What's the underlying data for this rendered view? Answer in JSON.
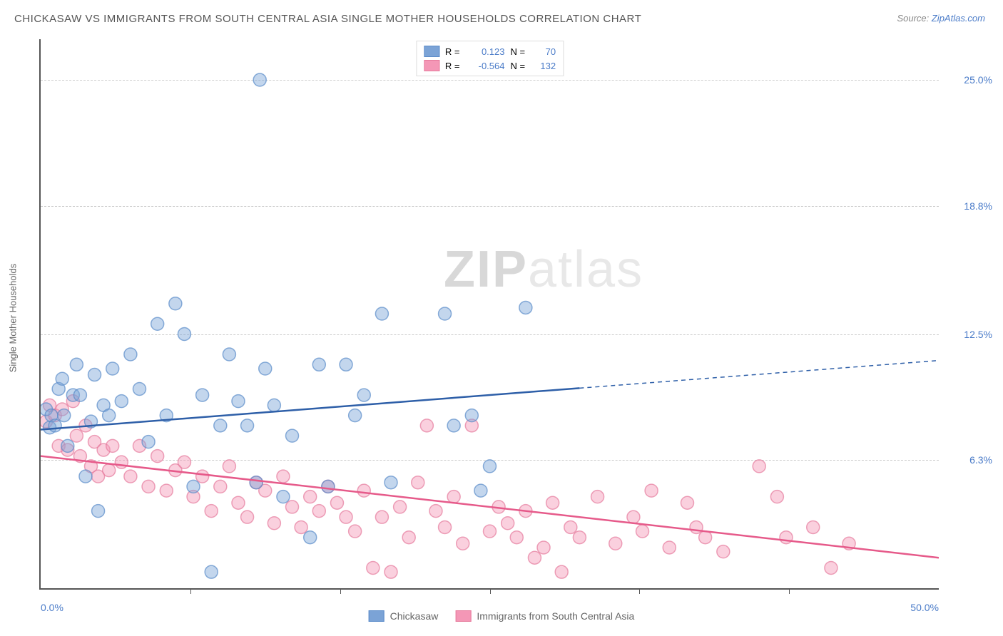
{
  "title": "CHICKASAW VS IMMIGRANTS FROM SOUTH CENTRAL ASIA SINGLE MOTHER HOUSEHOLDS CORRELATION CHART",
  "source_label": "Source: ",
  "source_name": "ZipAtlas.com",
  "y_axis_label": "Single Mother Households",
  "watermark_zip": "ZIP",
  "watermark_atlas": "atlas",
  "chart": {
    "type": "scatter",
    "xlim": [
      0,
      50
    ],
    "ylim": [
      0,
      27
    ],
    "x_ticks": [
      0,
      50
    ],
    "x_tick_labels": [
      "0.0%",
      "50.0%"
    ],
    "x_minor_ticks": [
      8.33,
      16.67,
      25,
      33.33,
      41.67
    ],
    "y_gridlines": [
      6.3,
      12.5,
      18.8,
      25.0
    ],
    "y_tick_labels": [
      "6.3%",
      "12.5%",
      "18.8%",
      "25.0%"
    ],
    "background_color": "#ffffff",
    "grid_color": "#cccccc",
    "axis_color": "#555555",
    "marker_radius": 9,
    "marker_opacity": 0.45,
    "marker_stroke_width": 1.5,
    "series": [
      {
        "name": "Chickasaw",
        "color": "#7ba3d6",
        "stroke": "#5a8bc9",
        "line_color": "#2e5fa8",
        "R": "0.123",
        "N": "70",
        "trend": {
          "y_at_x0": 7.8,
          "y_at_x50": 11.2,
          "solid_until_x": 30
        },
        "points": [
          [
            0.3,
            8.8
          ],
          [
            0.5,
            7.9
          ],
          [
            0.6,
            8.5
          ],
          [
            0.8,
            8.0
          ],
          [
            1.0,
            9.8
          ],
          [
            1.2,
            10.3
          ],
          [
            1.3,
            8.5
          ],
          [
            1.5,
            7.0
          ],
          [
            1.8,
            9.5
          ],
          [
            2.0,
            11.0
          ],
          [
            2.2,
            9.5
          ],
          [
            2.5,
            5.5
          ],
          [
            2.8,
            8.2
          ],
          [
            3.0,
            10.5
          ],
          [
            3.2,
            3.8
          ],
          [
            3.5,
            9.0
          ],
          [
            3.8,
            8.5
          ],
          [
            4.0,
            10.8
          ],
          [
            4.5,
            9.2
          ],
          [
            5.0,
            11.5
          ],
          [
            5.5,
            9.8
          ],
          [
            6.0,
            7.2
          ],
          [
            6.5,
            13.0
          ],
          [
            7.0,
            8.5
          ],
          [
            7.5,
            14.0
          ],
          [
            8.0,
            12.5
          ],
          [
            8.5,
            5.0
          ],
          [
            9.0,
            9.5
          ],
          [
            9.5,
            0.8
          ],
          [
            10.0,
            8.0
          ],
          [
            10.5,
            11.5
          ],
          [
            11.0,
            9.2
          ],
          [
            11.5,
            8.0
          ],
          [
            12.0,
            5.2
          ],
          [
            12.2,
            25.0
          ],
          [
            12.5,
            10.8
          ],
          [
            13.0,
            9.0
          ],
          [
            13.5,
            4.5
          ],
          [
            15.0,
            2.5
          ],
          [
            14.0,
            7.5
          ],
          [
            15.5,
            11.0
          ],
          [
            16.0,
            5.0
          ],
          [
            17.0,
            11.0
          ],
          [
            17.5,
            8.5
          ],
          [
            18.0,
            9.5
          ],
          [
            19.0,
            13.5
          ],
          [
            19.5,
            5.2
          ],
          [
            22.5,
            13.5
          ],
          [
            23.0,
            8.0
          ],
          [
            24.0,
            8.5
          ],
          [
            24.5,
            4.8
          ],
          [
            25.0,
            6.0
          ],
          [
            27.0,
            13.8
          ]
        ]
      },
      {
        "name": "Immigrants from South Central Asia",
        "color": "#f497b6",
        "stroke": "#e67a9c",
        "line_color": "#e65a8a",
        "R": "-0.564",
        "N": "132",
        "trend": {
          "y_at_x0": 6.5,
          "y_at_x50": 1.5,
          "solid_until_x": 50
        },
        "points": [
          [
            0.3,
            8.2
          ],
          [
            0.5,
            9.0
          ],
          [
            0.8,
            8.5
          ],
          [
            1.0,
            7.0
          ],
          [
            1.2,
            8.8
          ],
          [
            1.5,
            6.8
          ],
          [
            1.8,
            9.2
          ],
          [
            2.0,
            7.5
          ],
          [
            2.2,
            6.5
          ],
          [
            2.5,
            8.0
          ],
          [
            2.8,
            6.0
          ],
          [
            3.0,
            7.2
          ],
          [
            3.2,
            5.5
          ],
          [
            3.5,
            6.8
          ],
          [
            3.8,
            5.8
          ],
          [
            4.0,
            7.0
          ],
          [
            4.5,
            6.2
          ],
          [
            5.0,
            5.5
          ],
          [
            5.5,
            7.0
          ],
          [
            6.0,
            5.0
          ],
          [
            6.5,
            6.5
          ],
          [
            7.0,
            4.8
          ],
          [
            7.5,
            5.8
          ],
          [
            8.0,
            6.2
          ],
          [
            8.5,
            4.5
          ],
          [
            9.0,
            5.5
          ],
          [
            9.5,
            3.8
          ],
          [
            10.0,
            5.0
          ],
          [
            10.5,
            6.0
          ],
          [
            11.0,
            4.2
          ],
          [
            11.5,
            3.5
          ],
          [
            12.0,
            5.2
          ],
          [
            12.5,
            4.8
          ],
          [
            13.0,
            3.2
          ],
          [
            13.5,
            5.5
          ],
          [
            14.0,
            4.0
          ],
          [
            14.5,
            3.0
          ],
          [
            15.0,
            4.5
          ],
          [
            15.5,
            3.8
          ],
          [
            16.0,
            5.0
          ],
          [
            16.5,
            4.2
          ],
          [
            17.0,
            3.5
          ],
          [
            17.5,
            2.8
          ],
          [
            18.0,
            4.8
          ],
          [
            18.5,
            1.0
          ],
          [
            19.0,
            3.5
          ],
          [
            19.5,
            0.8
          ],
          [
            20.0,
            4.0
          ],
          [
            20.5,
            2.5
          ],
          [
            21.0,
            5.2
          ],
          [
            21.5,
            8.0
          ],
          [
            22.0,
            3.8
          ],
          [
            22.5,
            3.0
          ],
          [
            23.0,
            4.5
          ],
          [
            23.5,
            2.2
          ],
          [
            24.0,
            8.0
          ],
          [
            25.0,
            2.8
          ],
          [
            25.5,
            4.0
          ],
          [
            26.0,
            3.2
          ],
          [
            26.5,
            2.5
          ],
          [
            27.0,
            3.8
          ],
          [
            27.5,
            1.5
          ],
          [
            28.0,
            2.0
          ],
          [
            28.5,
            4.2
          ],
          [
            29.0,
            0.8
          ],
          [
            29.5,
            3.0
          ],
          [
            30.0,
            2.5
          ],
          [
            31.0,
            4.5
          ],
          [
            32.0,
            2.2
          ],
          [
            33.0,
            3.5
          ],
          [
            33.5,
            2.8
          ],
          [
            34.0,
            4.8
          ],
          [
            35.0,
            2.0
          ],
          [
            36.0,
            4.2
          ],
          [
            36.5,
            3.0
          ],
          [
            37.0,
            2.5
          ],
          [
            38.0,
            1.8
          ],
          [
            40.0,
            6.0
          ],
          [
            41.0,
            4.5
          ],
          [
            41.5,
            2.5
          ],
          [
            43.0,
            3.0
          ],
          [
            44.0,
            1.0
          ],
          [
            45.0,
            2.2
          ]
        ]
      }
    ]
  },
  "legend_top": {
    "R_label": "R =",
    "N_label": "N =",
    "value_color": "#4a7bc8"
  },
  "legend_bottom_labels": [
    "Chickasaw",
    "Immigrants from South Central Asia"
  ]
}
